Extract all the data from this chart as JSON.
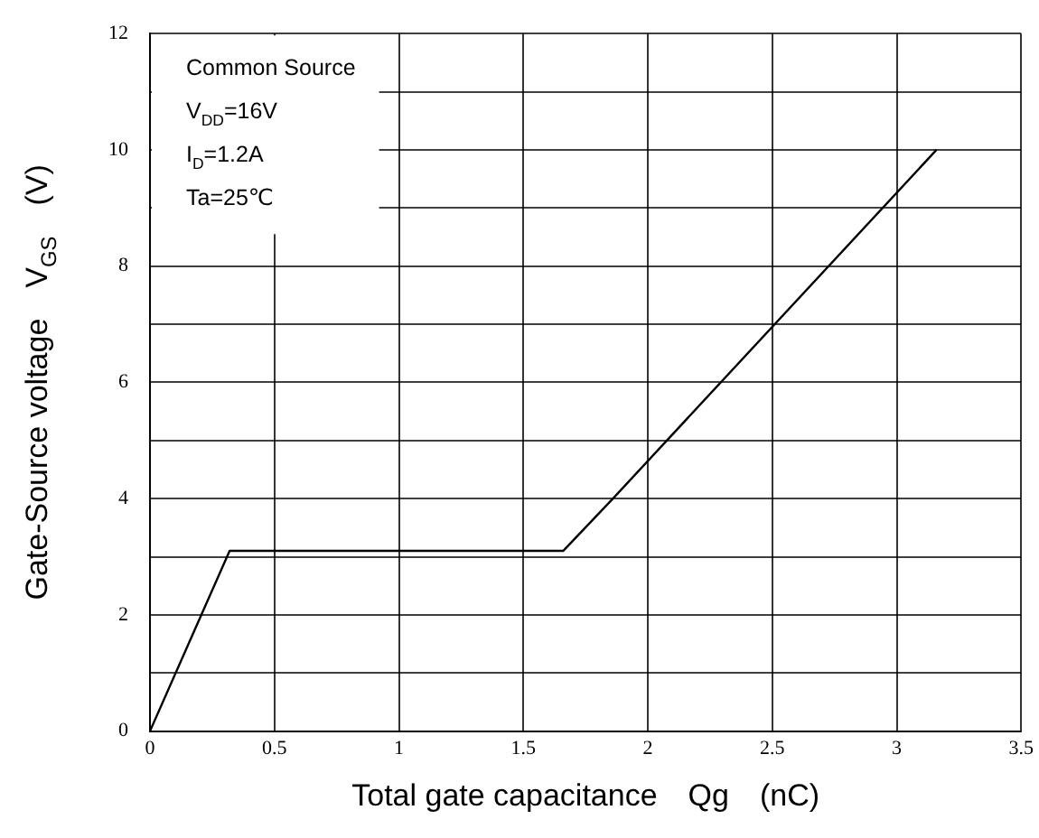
{
  "chart_data": {
    "type": "line",
    "xlabel": "Total gate capacitance　Qg　(nC)",
    "ylabel": "Gate-Source voltage　V$_{GS}$　(V)",
    "annotations": [
      "Common Source",
      "V$_{DD}$=16V",
      "I$_{D}$=1.2A",
      "Ta=25℃"
    ],
    "x": [
      0,
      0.32,
      1.66,
      1.86,
      3.16
    ],
    "series": [
      {
        "color": "#000000",
        "values": [
          0,
          3.1,
          3.1,
          4.0,
          10
        ]
      }
    ],
    "xlim": [
      0,
      3.5
    ],
    "xticks": [
      0,
      0.5,
      1,
      1.5,
      2,
      2.5,
      3,
      3.5
    ],
    "ylim": [
      0,
      12
    ],
    "yticks": [
      0,
      {
        "value": 1,
        "label": null
      },
      2,
      {
        "value": 3,
        "label": null
      },
      4,
      {
        "value": 5,
        "label": null
      },
      6,
      {
        "value": 7,
        "label": null
      },
      8,
      {
        "value": 9,
        "label": null
      },
      10,
      {
        "value": 11,
        "label": null
      },
      12
    ],
    "grid": true,
    "legend": false,
    "marker": "none",
    "line_style": "solid"
  }
}
